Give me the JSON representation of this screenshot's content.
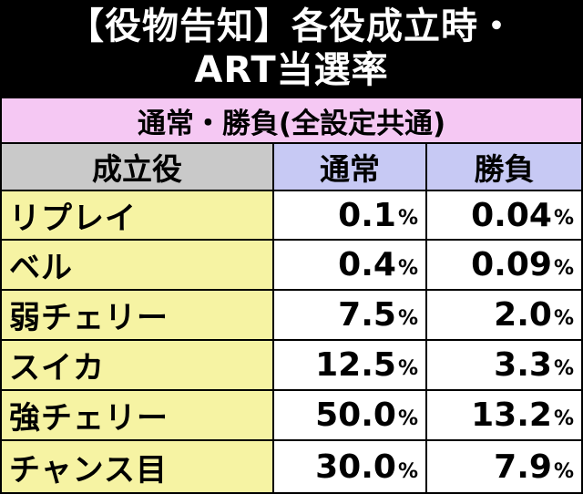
{
  "title": {
    "line1": "【役物告知】各役成立時・",
    "line2": "ART当選率"
  },
  "table": {
    "subtitle": "通常・勝負(全設定共通)",
    "headers": {
      "role": "成立役",
      "normal": "通常",
      "battle": "勝負"
    },
    "percent_unit": "%",
    "rows": [
      {
        "name": "リプレイ",
        "normal": "0.1",
        "battle": "0.04"
      },
      {
        "name": "ベル",
        "normal": "0.4",
        "battle": "0.09"
      },
      {
        "name": "弱チェリー",
        "normal": "7.5",
        "battle": "2.0"
      },
      {
        "name": "スイカ",
        "normal": "12.5",
        "battle": "3.3"
      },
      {
        "name": "強チェリー",
        "normal": "50.0",
        "battle": "13.2"
      },
      {
        "name": "チャンス目",
        "normal": "30.0",
        "battle": "7.9"
      }
    ]
  }
}
